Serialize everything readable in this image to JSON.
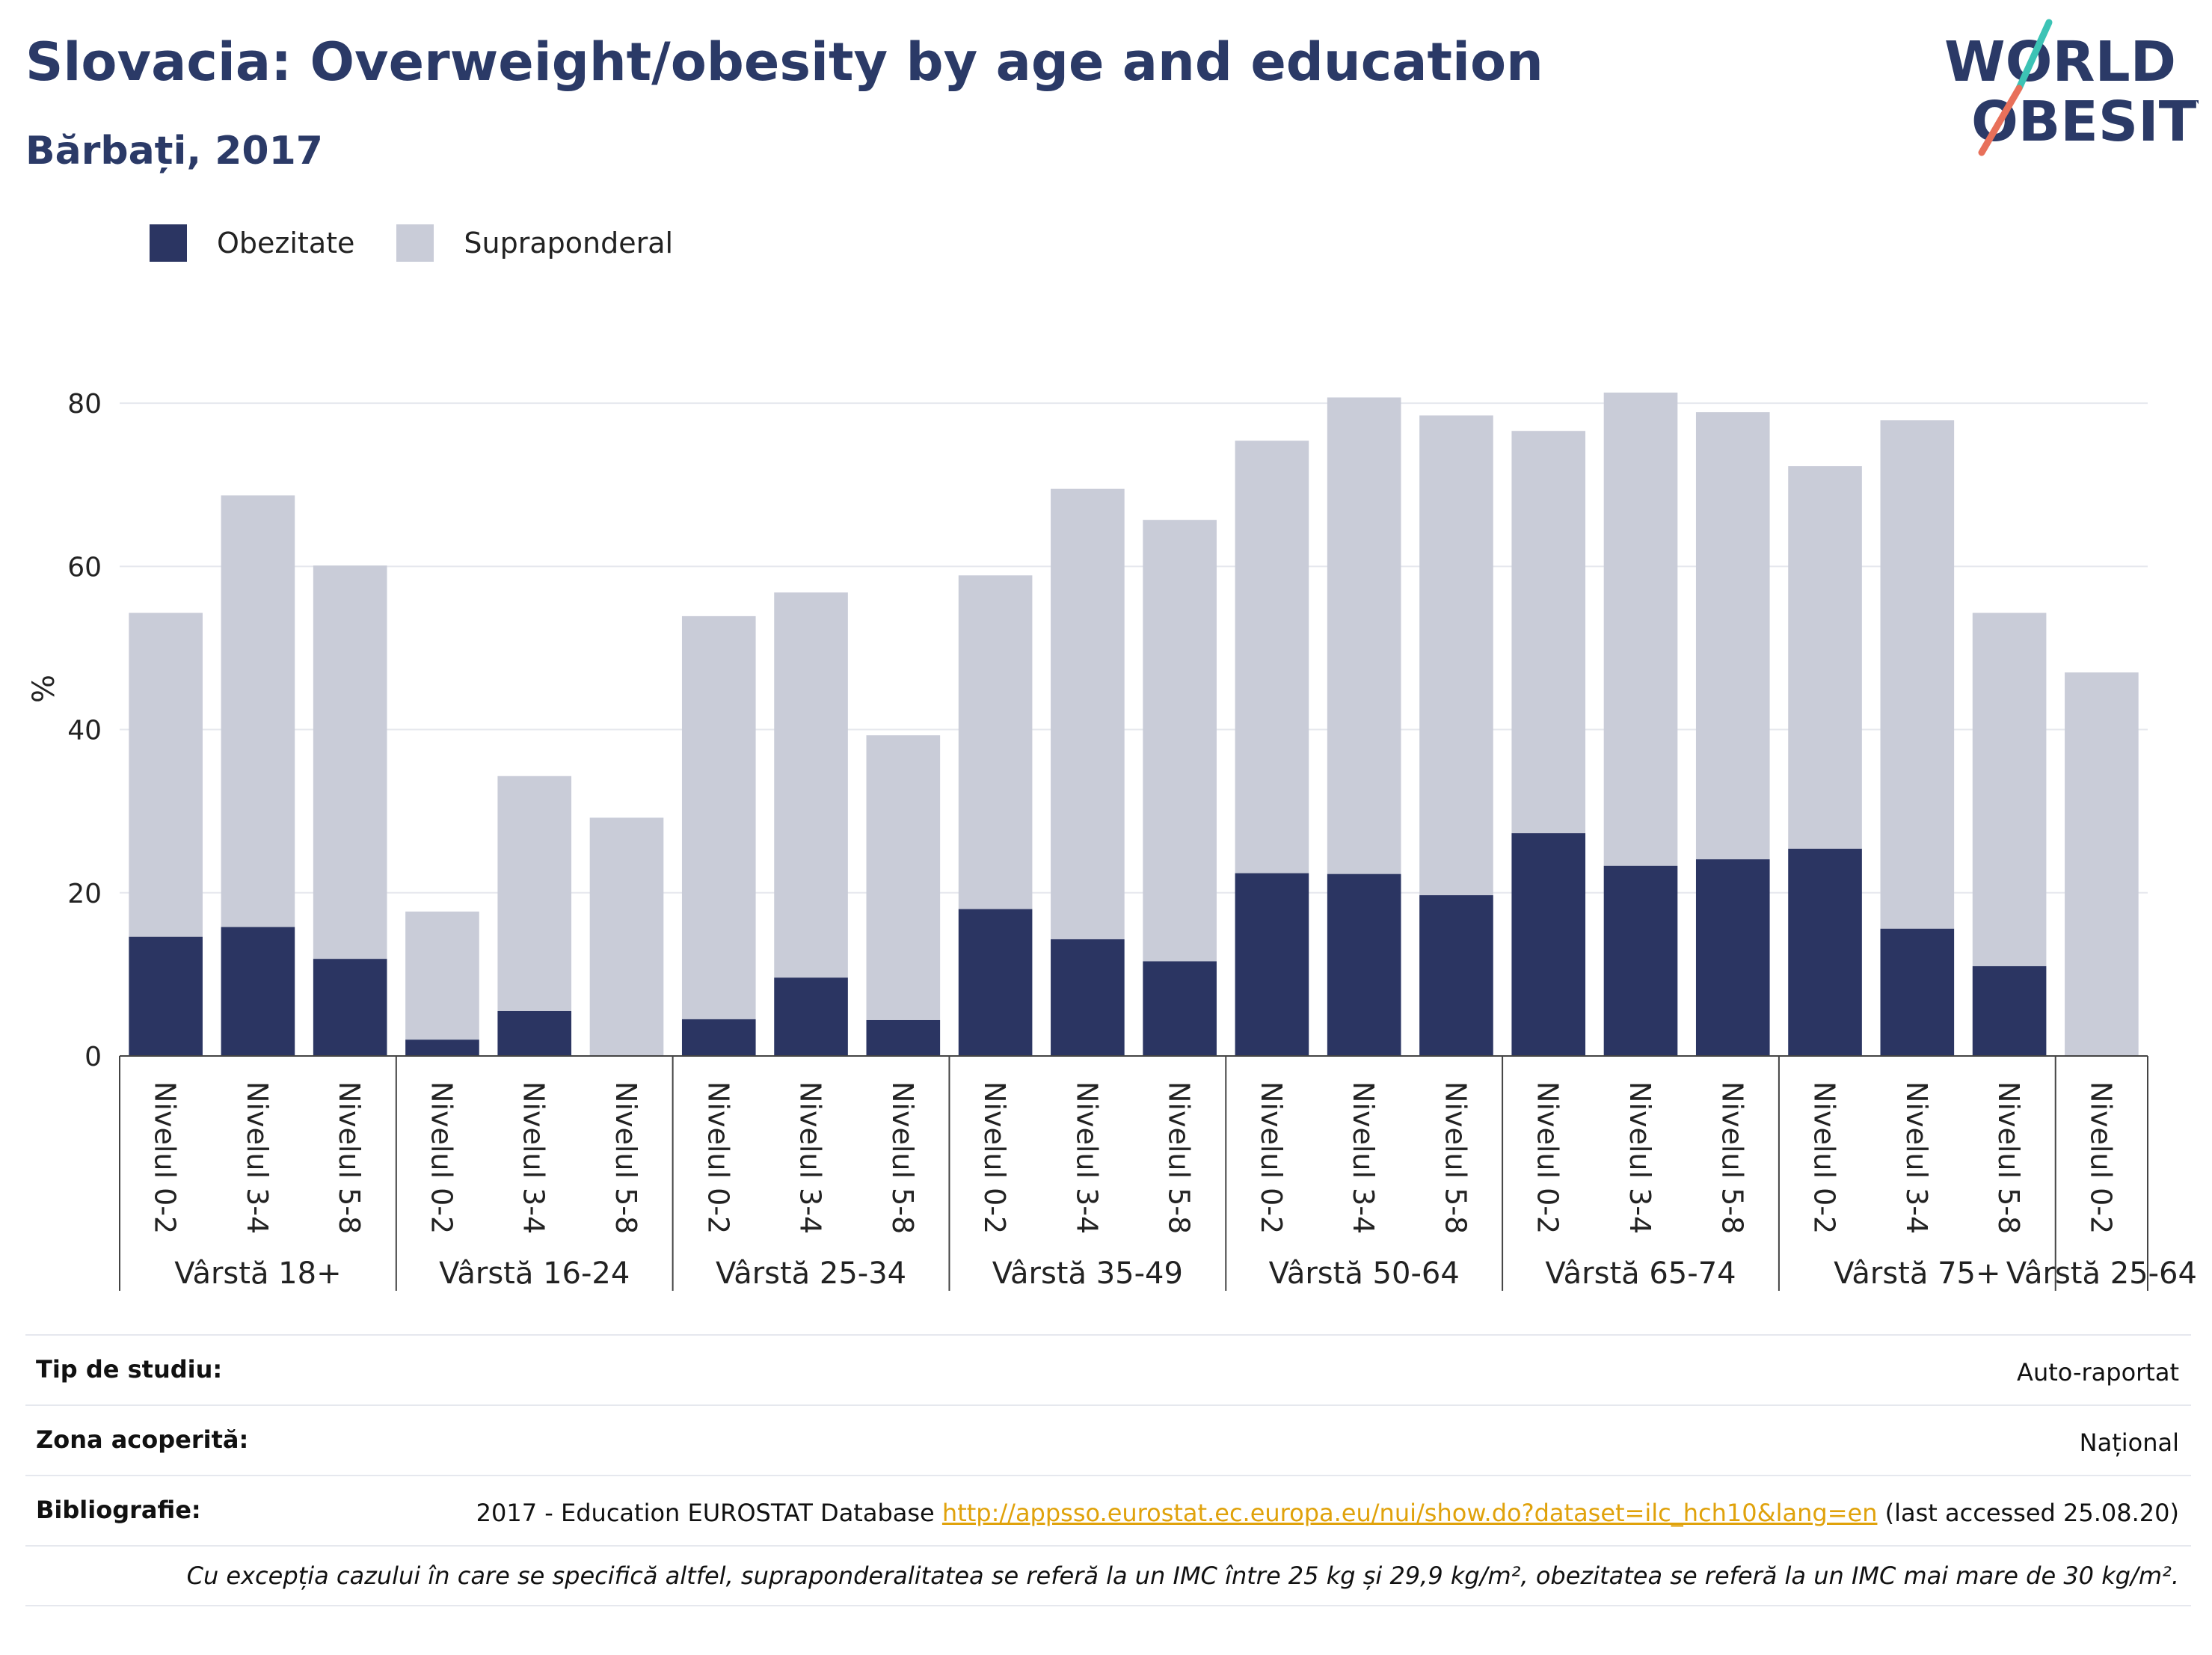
{
  "header": {
    "title": "Slovacia: Overweight/obesity by age and education",
    "subtitle": "Bărbați, 2017"
  },
  "logo": {
    "line1": "WORLD",
    "line2": "OBESITY"
  },
  "colors": {
    "obesity": "#2b3562",
    "overweight": "#c9ccd8",
    "title": "#2b3a67",
    "link": "#e0a20b"
  },
  "chart_data": {
    "type": "bar",
    "stacked": true,
    "ylabel": "%",
    "ylim": [
      0,
      90
    ],
    "yticks": [
      0,
      20,
      40,
      60,
      80
    ],
    "grid": true,
    "legend_position": "top-left",
    "groups": [
      {
        "label": "Vârstă 18+",
        "categories": [
          "Nivelul 0-2",
          "Nivelul 3-4",
          "Nivelul 5-8"
        ]
      },
      {
        "label": "Vârstă 16-24",
        "categories": [
          "Nivelul 0-2",
          "Nivelul 3-4",
          "Nivelul 5-8"
        ]
      },
      {
        "label": "Vârstă 25-34",
        "categories": [
          "Nivelul 0-2",
          "Nivelul 3-4",
          "Nivelul 5-8"
        ]
      },
      {
        "label": "Vârstă 35-49",
        "categories": [
          "Nivelul 0-2",
          "Nivelul 3-4",
          "Nivelul 5-8"
        ]
      },
      {
        "label": "Vârstă 50-64",
        "categories": [
          "Nivelul 0-2",
          "Nivelul 3-4",
          "Nivelul 5-8"
        ]
      },
      {
        "label": "Vârstă 65-74",
        "categories": [
          "Nivelul 0-2",
          "Nivelul 3-4",
          "Nivelul 5-8"
        ]
      },
      {
        "label": "Vârstă 75+",
        "categories": [
          "Nivelul 0-2",
          "Nivelul 3-4",
          "Nivelul 5-8"
        ]
      },
      {
        "label": "Vârstă 25-64",
        "categories": [
          "Nivelul 0-2"
        ]
      }
    ],
    "series": [
      {
        "name": "Obezitate",
        "values": [
          14.6,
          15.8,
          11.9,
          2.0,
          5.5,
          0,
          4.5,
          9.6,
          4.4,
          18.0,
          14.3,
          11.6,
          22.4,
          22.3,
          19.7,
          27.3,
          23.3,
          24.1,
          25.4,
          15.6,
          11.0,
          0
        ]
      },
      {
        "name": "Supraponderal",
        "values": [
          39.7,
          52.9,
          48.2,
          15.7,
          28.8,
          29.2,
          49.4,
          47.2,
          34.9,
          40.9,
          55.2,
          54.1,
          53.0,
          58.4,
          58.8,
          49.3,
          58.0,
          54.8,
          46.9,
          62.3,
          43.3,
          47.0
        ]
      }
    ]
  },
  "info": {
    "study_type_label": "Tip de studiu:",
    "study_type_value": "Auto-raportat",
    "coverage_label": "Zona acoperită:",
    "coverage_value": "Național",
    "bibliography_label": "Bibliografie:",
    "bibliography_prefix": "2017 - Education EUROSTAT Database ",
    "bibliography_url": "http://appsso.eurostat.ec.europa.eu/nui/show.do?dataset=ilc_hch10&lang=en",
    "bibliography_suffix": " (last accessed 25.08.20)",
    "note": "Cu excepția cazului în care se specifică altfel, supraponderalitatea se referă la un IMC între 25 kg și 29,9 kg/m², obezitatea se referă la un IMC mai mare de 30 kg/m²."
  }
}
